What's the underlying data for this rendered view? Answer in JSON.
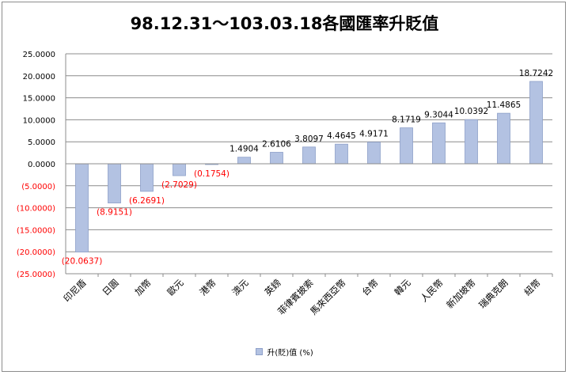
{
  "chart_data": {
    "type": "bar",
    "title": "98.12.31～103.03.18各國匯率升貶值",
    "xlabel": "",
    "ylabel": "",
    "ylim": [
      -25,
      25
    ],
    "ytick_step": 5,
    "yticks": [
      "25.0000",
      "20.0000",
      "15.0000",
      "10.0000",
      "5.0000",
      "0.0000",
      "(5.0000)",
      "(10.0000)",
      "(15.0000)",
      "(20.0000)",
      "(25.0000)"
    ],
    "grid": true,
    "legend_position": "bottom",
    "categories": [
      "印尼盾",
      "日圓",
      "加幣",
      "歐元",
      "港幣",
      "澳元",
      "英鎊",
      "菲律賓披索",
      "馬來西亞幣",
      "台幣",
      "韓元",
      "人民幣",
      "新加坡幣",
      "瑞典克朗",
      "紐幣"
    ],
    "series": [
      {
        "name": "升(貶)值 (%)",
        "values": [
          -20.0637,
          -8.9151,
          -6.2691,
          -2.7029,
          -0.1754,
          1.4904,
          2.6106,
          3.8097,
          4.4645,
          4.9171,
          8.1719,
          9.3044,
          10.0392,
          11.4865,
          18.7242
        ],
        "labels": [
          "(20.0637)",
          "(8.9151)",
          "(6.2691)",
          "(2.7029)",
          "(0.1754)",
          "1.4904",
          "2.6106",
          "3.8097",
          "4.4645",
          "4.9171",
          "8.1719",
          "9.3044",
          "10.0392",
          "11.4865",
          "18.7242"
        ]
      }
    ],
    "colors": {
      "bar_fill": "#b3c2e2",
      "bar_stroke": "#8ea0c9",
      "negative_text": "#ff0000",
      "positive_text": "#000000",
      "grid": "#8c8c8c",
      "axis": "#8c8c8c"
    }
  }
}
